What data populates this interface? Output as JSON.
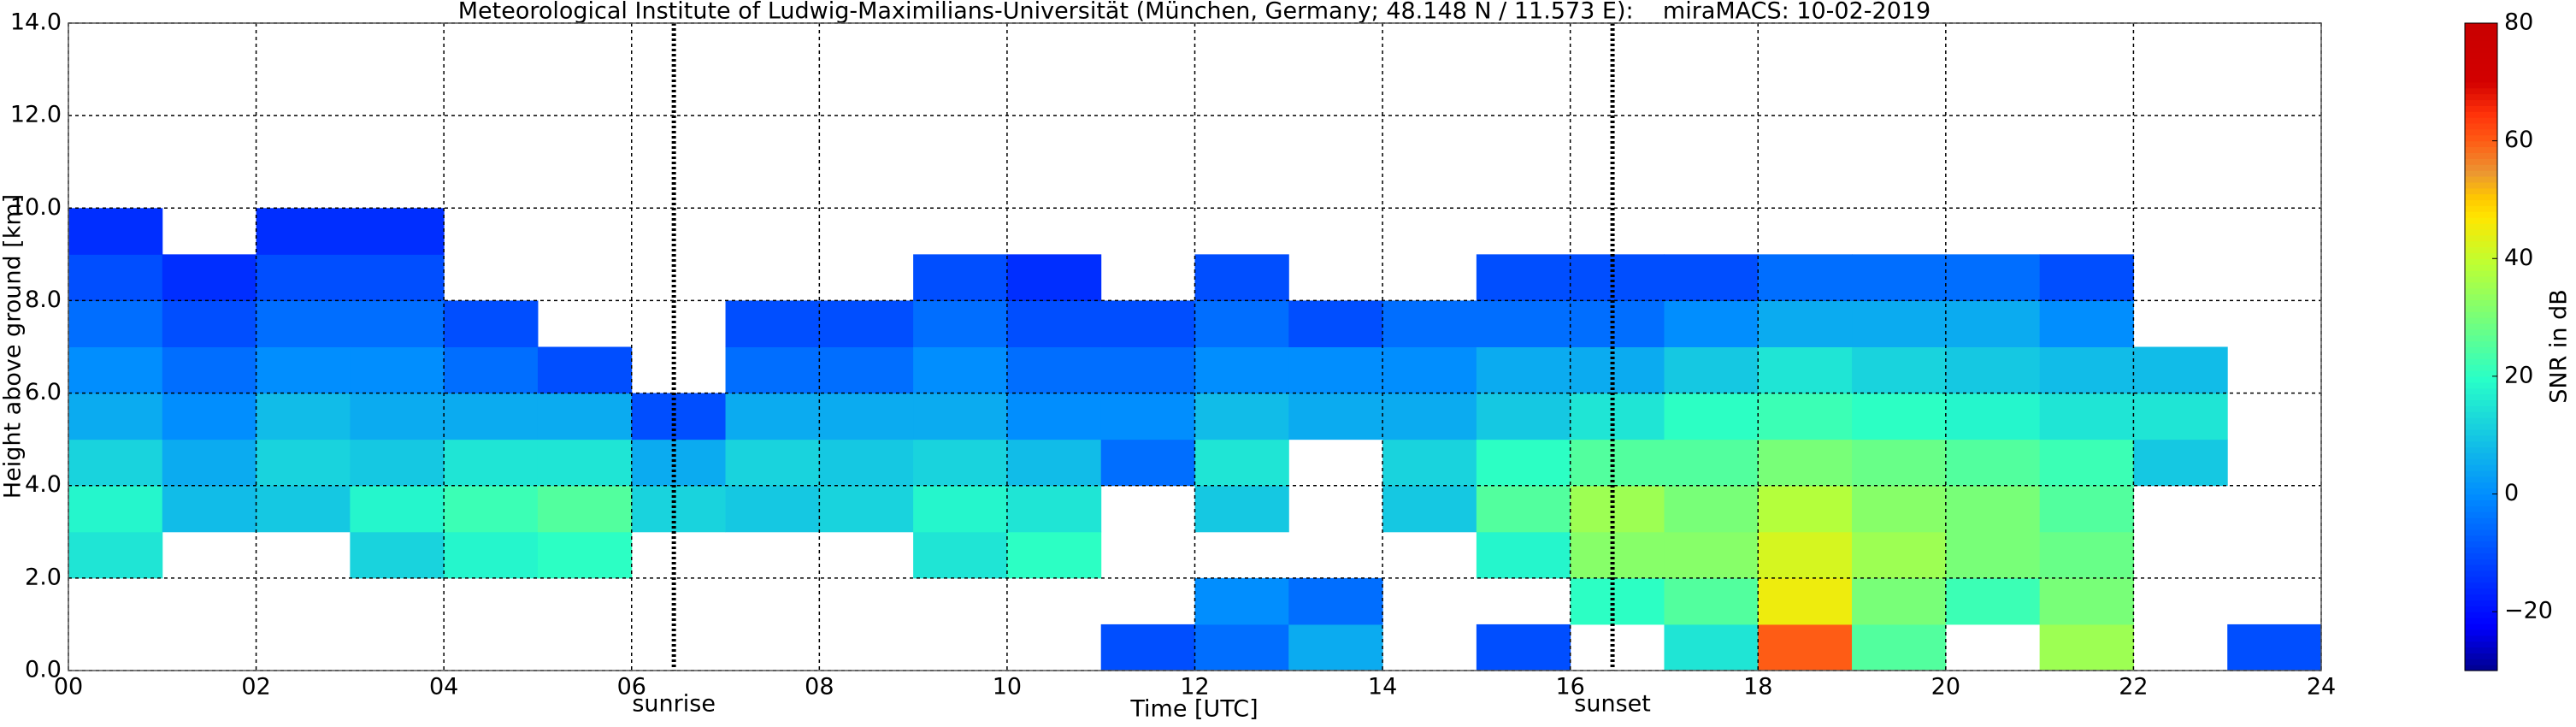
{
  "chart_data": {
    "type": "heatmap",
    "title": "Meteorological Institute of Ludwig-Maximilians-Universität (München, Germany; 48.148 N / 11.573 E):    miraMACS: 10-02-2019",
    "x_label": "Time [UTC]",
    "y_label": "Height above ground [km]",
    "colorbar_label": "SNR in dB",
    "x": [
      0.5,
      1.5,
      2.5,
      3.5,
      4.5,
      5.5,
      6.5,
      7.5,
      8.5,
      9.5,
      10.5,
      11.5,
      12.5,
      13.5,
      14.5,
      15.5,
      16.5,
      17.5,
      18.5,
      19.5,
      20.5,
      21.5,
      22.5,
      23.5
    ],
    "y": [
      0.5,
      1.5,
      2.5,
      3.5,
      4.5,
      5.5,
      6.5,
      7.5,
      8.5,
      9.5
    ],
    "z": [
      [
        null,
        null,
        15,
        18,
        12,
        5,
        0,
        -5,
        -10,
        -15
      ],
      [
        null,
        null,
        null,
        8,
        5,
        0,
        -5,
        -10,
        -15,
        null
      ],
      [
        null,
        null,
        null,
        10,
        12,
        8,
        0,
        -5,
        -10,
        -15
      ],
      [
        null,
        null,
        12,
        18,
        10,
        5,
        0,
        -5,
        -10,
        -15
      ],
      [
        null,
        null,
        18,
        22,
        15,
        5,
        -5,
        -10,
        null,
        null
      ],
      [
        null,
        null,
        20,
        25,
        15,
        5,
        -10,
        null,
        null,
        null
      ],
      [
        null,
        null,
        null,
        12,
        5,
        -10,
        null,
        null,
        null,
        null
      ],
      [
        null,
        null,
        null,
        10,
        12,
        5,
        -5,
        -10,
        null,
        null
      ],
      [
        null,
        null,
        null,
        12,
        10,
        5,
        -5,
        -10,
        null,
        null
      ],
      [
        null,
        null,
        15,
        18,
        12,
        5,
        0,
        -5,
        -10,
        null
      ],
      [
        null,
        null,
        20,
        15,
        8,
        0,
        -5,
        -10,
        -15,
        null
      ],
      [
        -10,
        null,
        null,
        null,
        -5,
        0,
        -5,
        -10,
        null,
        null
      ],
      [
        -5,
        0,
        null,
        10,
        15,
        8,
        0,
        -5,
        -10,
        null
      ],
      [
        5,
        -5,
        null,
        null,
        null,
        5,
        0,
        -10,
        null,
        null
      ],
      [
        null,
        null,
        null,
        10,
        12,
        5,
        0,
        -5,
        null,
        null
      ],
      [
        -10,
        null,
        18,
        25,
        20,
        10,
        5,
        -5,
        -10,
        null
      ],
      [
        null,
        20,
        32,
        35,
        25,
        15,
        5,
        -5,
        -10,
        null
      ],
      [
        15,
        25,
        32,
        30,
        25,
        20,
        10,
        0,
        -10,
        null
      ],
      [
        60,
        45,
        42,
        38,
        30,
        22,
        15,
        5,
        -5,
        null
      ],
      [
        25,
        30,
        35,
        32,
        28,
        20,
        12,
        5,
        -5,
        null
      ],
      [
        null,
        22,
        30,
        30,
        25,
        18,
        10,
        5,
        -5,
        null
      ],
      [
        35,
        30,
        28,
        25,
        22,
        15,
        8,
        0,
        -10,
        null
      ],
      [
        null,
        null,
        null,
        null,
        10,
        15,
        8,
        null,
        null,
        null
      ],
      [
        -10,
        null,
        null,
        null,
        null,
        null,
        null,
        null,
        null,
        null
      ]
    ],
    "xlim": [
      0,
      24
    ],
    "ylim": [
      0,
      14
    ],
    "clim": [
      -30,
      80
    ],
    "xticks": [
      {
        "value": 0,
        "label": "00"
      },
      {
        "value": 2,
        "label": "02"
      },
      {
        "value": 4,
        "label": "04"
      },
      {
        "value": 6,
        "label": "06"
      },
      {
        "value": 8,
        "label": "08"
      },
      {
        "value": 10,
        "label": "10"
      },
      {
        "value": 12,
        "label": "12"
      },
      {
        "value": 14,
        "label": "14"
      },
      {
        "value": 16,
        "label": "16"
      },
      {
        "value": 18,
        "label": "18"
      },
      {
        "value": 20,
        "label": "20"
      },
      {
        "value": 22,
        "label": "22"
      },
      {
        "value": 24,
        "label": "24"
      }
    ],
    "yticks": [
      {
        "value": 0,
        "label": "0.0"
      },
      {
        "value": 2,
        "label": "2.0"
      },
      {
        "value": 4,
        "label": "4.0"
      },
      {
        "value": 6,
        "label": "6.0"
      },
      {
        "value": 8,
        "label": "8.0"
      },
      {
        "value": 10,
        "label": "10.0"
      },
      {
        "value": 12,
        "label": "12.0"
      },
      {
        "value": 14,
        "label": "14.0"
      }
    ],
    "cticks": [
      {
        "value": -20,
        "label": "−20"
      },
      0,
      20,
      40,
      60,
      80
    ],
    "annotations": [
      {
        "x": 6.45,
        "label": "sunrise"
      },
      {
        "x": 16.45,
        "label": "sunset"
      }
    ],
    "grid": true
  }
}
